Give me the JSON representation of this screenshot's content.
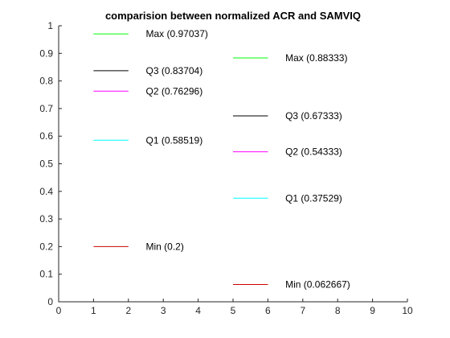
{
  "chart_data": {
    "type": "line",
    "title": "comparision between normalized ACR and SAMVIQ",
    "xlabel": "",
    "ylabel": "",
    "xlim": [
      0,
      10
    ],
    "ylim": [
      0,
      1
    ],
    "x_ticks": [
      "0",
      "1",
      "2",
      "3",
      "4",
      "5",
      "6",
      "7",
      "8",
      "9",
      "10"
    ],
    "y_ticks": [
      "0",
      "0.1",
      "0.2",
      "0.3",
      "0.4",
      "0.5",
      "0.6",
      "0.7",
      "0.8",
      "0.9",
      "1"
    ],
    "grid": false,
    "groups": [
      {
        "x_start": 1,
        "x_end": 2,
        "label_x": 2.5,
        "marks": [
          {
            "stat": "Max",
            "value": 0.97037,
            "label": "Max (0.97037)",
            "color": "#00ff00"
          },
          {
            "stat": "Q3",
            "value": 0.83704,
            "label": "Q3 (0.83704)",
            "color": "#000000"
          },
          {
            "stat": "Q2",
            "value": 0.76296,
            "label": "Q2 (0.76296)",
            "color": "#ff00ff"
          },
          {
            "stat": "Q1",
            "value": 0.58519,
            "label": "Q1 (0.58519)",
            "color": "#00ffff"
          },
          {
            "stat": "Min",
            "value": 0.2,
            "label": "Min (0.2)",
            "color": "#cc0000"
          }
        ]
      },
      {
        "x_start": 5,
        "x_end": 6,
        "label_x": 6.5,
        "marks": [
          {
            "stat": "Max",
            "value": 0.88333,
            "label": "Max (0.88333)",
            "color": "#00ff00"
          },
          {
            "stat": "Q3",
            "value": 0.67333,
            "label": "Q3 (0.67333)",
            "color": "#000000"
          },
          {
            "stat": "Q2",
            "value": 0.54333,
            "label": "Q2 (0.54333)",
            "color": "#ff00ff"
          },
          {
            "stat": "Q1",
            "value": 0.37529,
            "label": "Q1 (0.37529)",
            "color": "#00ffff"
          },
          {
            "stat": "Min",
            "value": 0.062667,
            "label": "Min (0.062667)",
            "color": "#cc0000"
          }
        ]
      }
    ]
  }
}
